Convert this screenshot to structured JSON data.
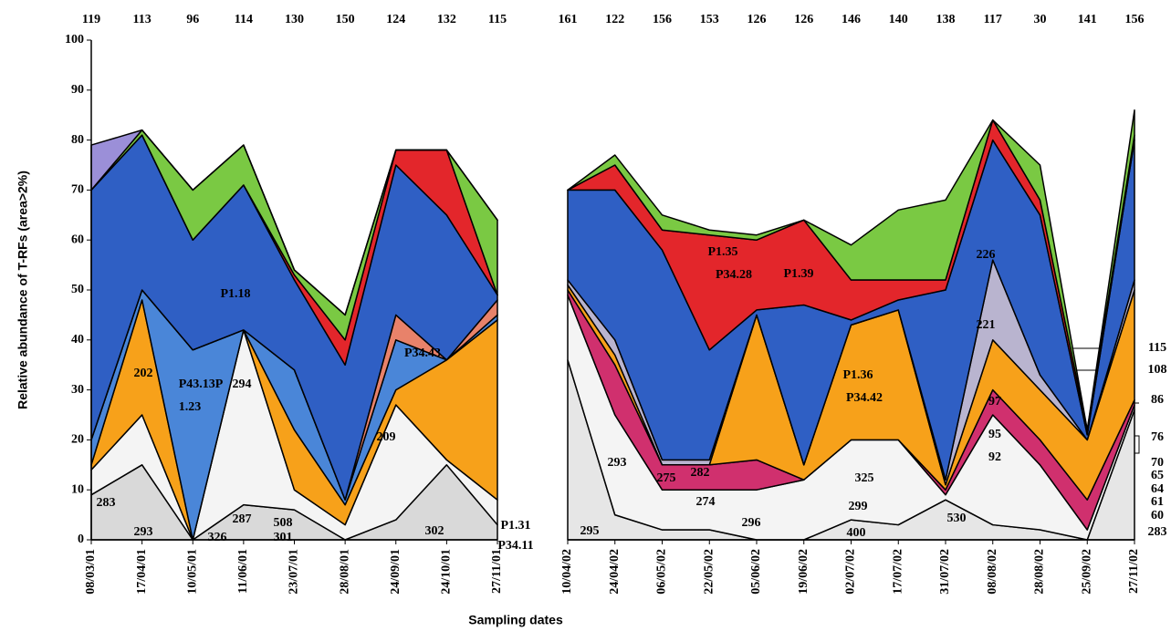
{
  "chart_data": [
    {
      "type": "area",
      "stacked": true,
      "ylabel": "Relative abundance of T-RFs (area>2%)",
      "xlabel": "Sampling dates",
      "categories": [
        "08/03/01",
        "17/04/01",
        "10/05/01",
        "11/06/01",
        "23/07/01",
        "28/08/01",
        "24/09/01",
        "24/10/01",
        "27/11/01"
      ],
      "top_labels": [
        "119",
        "113",
        "96",
        "114",
        "130",
        "150",
        "124",
        "132",
        "115"
      ],
      "ylim": [
        0,
        100
      ],
      "yticks": [
        0,
        10,
        20,
        30,
        40,
        50,
        60,
        70,
        80,
        90,
        100
      ],
      "series": [
        {
          "color": "#d9d9d9",
          "values": [
            9,
            15,
            0,
            7,
            6,
            0,
            4,
            15,
            3
          ]
        },
        {
          "color": "#f4f4f4",
          "values": [
            5,
            10,
            0,
            35,
            4,
            3,
            23,
            1,
            5
          ]
        },
        {
          "color": "#f7a11a",
          "values": [
            1,
            23,
            0,
            0,
            12,
            4,
            3,
            20,
            36
          ]
        },
        {
          "color": "#4a86d8",
          "values": [
            5,
            2,
            38,
            0,
            12,
            1,
            10,
            0,
            1
          ]
        },
        {
          "color": "#e8826a",
          "values": [
            0,
            0,
            0,
            0,
            0,
            0,
            5,
            0,
            3
          ]
        },
        {
          "color": "#2f5fc4",
          "values": [
            50,
            31,
            22,
            29,
            18,
            27,
            30,
            29,
            1
          ]
        },
        {
          "color": "#e3262b",
          "values": [
            0,
            0,
            0,
            0,
            1,
            5,
            3,
            13,
            0
          ]
        },
        {
          "color": "#7ac943",
          "values": [
            0,
            1,
            10,
            8,
            1,
            5,
            0,
            0,
            15
          ]
        },
        {
          "color": "#9b8fd8",
          "values": [
            9,
            0,
            0,
            0,
            0,
            0,
            0,
            0,
            0
          ]
        }
      ],
      "annotations": [
        "P1.18",
        "P43.13P",
        "1.23",
        "202",
        "294",
        "283",
        "293",
        "287",
        "326",
        "508",
        "301",
        "209",
        "P34.43",
        "302",
        "P1.31",
        "P34.11"
      ]
    },
    {
      "type": "area",
      "stacked": true,
      "categories": [
        "10/04/02",
        "24/04/02",
        "06/05/02",
        "22/05/02",
        "05/06/02",
        "19/06/02",
        "02/07/02",
        "17/07/02",
        "31/07/02",
        "08/08/02",
        "28/08/02",
        "25/09/02",
        "27/11/02"
      ],
      "top_labels": [
        "161",
        "122",
        "156",
        "153",
        "126",
        "126",
        "146",
        "140",
        "138",
        "117",
        "30",
        "141",
        "156"
      ],
      "ylim": [
        0,
        100
      ],
      "series": [
        {
          "color": "#e6e6e6",
          "values": [
            36,
            5,
            2,
            2,
            0,
            0,
            4,
            3,
            8,
            3,
            2,
            0,
            26
          ]
        },
        {
          "color": "#f4f4f4",
          "values": [
            13,
            20,
            8,
            8,
            10,
            12,
            16,
            17,
            1,
            22,
            13,
            2,
            1
          ]
        },
        {
          "color": "#d0306e",
          "values": [
            1,
            10,
            5,
            5,
            6,
            0,
            0,
            0,
            1,
            5,
            5,
            6,
            1
          ]
        },
        {
          "color": "#f7a11a",
          "values": [
            1,
            2,
            0,
            0,
            29,
            3,
            23,
            26,
            1,
            10,
            10,
            12,
            22
          ]
        },
        {
          "color": "#b9b4cf",
          "values": [
            1,
            3,
            1,
            1,
            0,
            0,
            0,
            0,
            1,
            16,
            3,
            0,
            2
          ]
        },
        {
          "color": "#2f5fc4",
          "values": [
            18,
            30,
            42,
            22,
            1,
            32,
            1,
            2,
            38,
            24,
            32,
            1,
            28
          ]
        },
        {
          "color": "#e3262b",
          "values": [
            0,
            5,
            4,
            23,
            14,
            17,
            8,
            4,
            2,
            4,
            3,
            1,
            1
          ]
        },
        {
          "color": "#7ac943",
          "values": [
            0,
            2,
            3,
            1,
            1,
            0,
            7,
            14,
            16,
            0,
            7,
            0,
            5
          ]
        }
      ],
      "annotations": [
        "P1.35",
        "P34.28",
        "P1.39",
        "P1.36",
        "P34.42",
        "293",
        "275",
        "282",
        "274",
        "296",
        "325",
        "299",
        "400",
        "295",
        "530",
        "226",
        "221",
        "97",
        "95",
        "92",
        "115",
        "108",
        "86",
        "76",
        "70",
        "65",
        "64",
        "61",
        "60",
        "283"
      ]
    }
  ]
}
